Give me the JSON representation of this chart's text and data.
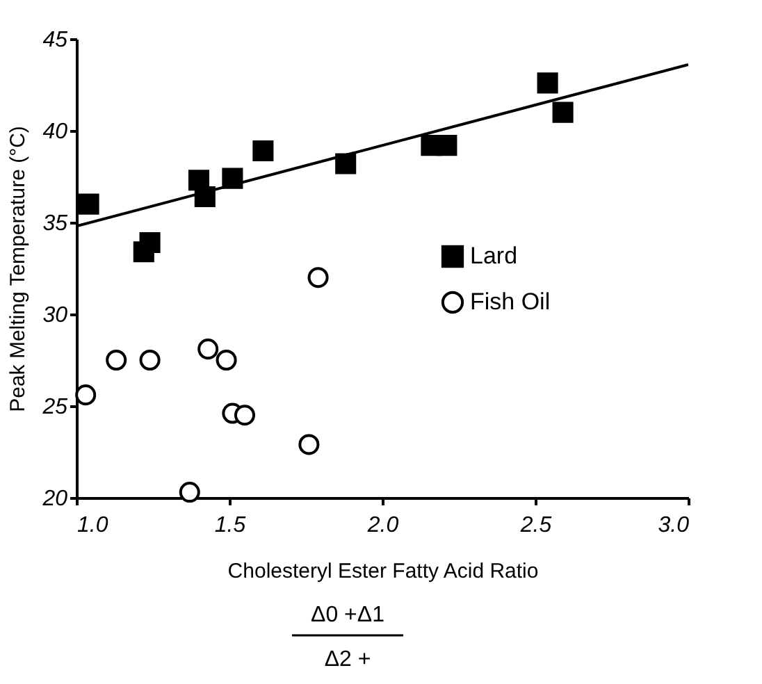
{
  "chart_data": {
    "type": "scatter",
    "xlabel": "Cholesteryl Ester Fatty Acid Ratio",
    "ylabel": "Peak Melting Temperature (°C)",
    "annotations": [
      "Δ0 +Δ1",
      "Δ2 +"
    ],
    "xlim": [
      1.0,
      3.0
    ],
    "xticks": [
      {
        "value": 1.0,
        "label": "1.0"
      },
      {
        "value": 1.5,
        "label": "1.5"
      },
      {
        "value": 2.0,
        "label": "2.0"
      },
      {
        "value": 2.5,
        "label": "2.5"
      },
      {
        "value": 3.0,
        "label": "3.0"
      }
    ],
    "ylim": [
      20,
      45
    ],
    "yticks": [
      20,
      25,
      30,
      35,
      40,
      45
    ],
    "grid": false,
    "legend": "right",
    "series": [
      {
        "name": "Lard",
        "marker": "square",
        "color": "#000000",
        "x": [
          1.04,
          1.22,
          1.24,
          1.4,
          1.42,
          1.51,
          1.61,
          1.88,
          2.16,
          2.21,
          2.54,
          2.59
        ],
        "values": [
          36.0,
          33.4,
          33.9,
          37.3,
          36.4,
          37.4,
          38.9,
          38.2,
          39.2,
          39.2,
          42.6,
          41.0
        ]
      },
      {
        "name": "Fish Oil",
        "marker": "circle",
        "color": "#000000",
        "x": [
          1.03,
          1.13,
          1.24,
          1.37,
          1.43,
          1.49,
          1.51,
          1.55,
          1.76,
          1.79
        ],
        "values": [
          25.6,
          27.5,
          27.5,
          20.3,
          28.1,
          27.5,
          24.6,
          24.5,
          22.9,
          32.0
        ]
      },
      {
        "type": "line",
        "color": "#000000",
        "x": [
          1.0,
          3.0
        ],
        "values": [
          34.8,
          43.6
        ]
      }
    ]
  }
}
